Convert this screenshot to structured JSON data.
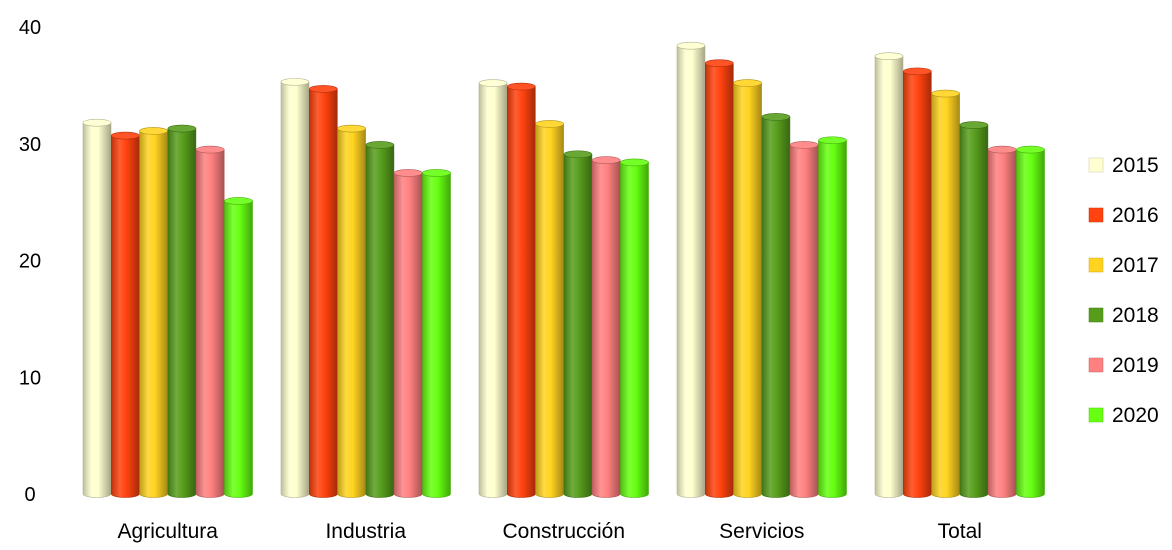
{
  "chart_data": {
    "type": "bar",
    "title": "",
    "xlabel": "",
    "ylabel": "",
    "ylim": [
      0,
      40
    ],
    "yticks": [
      0,
      10,
      20,
      30,
      40
    ],
    "grid": false,
    "legend_position": "right",
    "style": "3d-cylinder",
    "categories": [
      "Agricultura",
      "Industria",
      "Construcción",
      "Servicios",
      "Total"
    ],
    "series": [
      {
        "name": "2015",
        "color": "#FFFFD0",
        "values": [
          31.8,
          35.3,
          35.2,
          38.4,
          37.5
        ]
      },
      {
        "name": "2016",
        "color": "#FF420E",
        "values": [
          30.7,
          34.7,
          34.9,
          36.9,
          36.2
        ]
      },
      {
        "name": "2017",
        "color": "#FFD320",
        "values": [
          31.1,
          31.3,
          31.7,
          35.2,
          34.3
        ]
      },
      {
        "name": "2018",
        "color": "#579D1C",
        "values": [
          31.3,
          29.9,
          29.1,
          32.3,
          31.6
        ]
      },
      {
        "name": "2019",
        "color": "#FF8080",
        "values": [
          29.5,
          27.5,
          28.6,
          29.9,
          29.5
        ]
      },
      {
        "name": "2020",
        "color": "#66FF11",
        "values": [
          25.1,
          27.5,
          28.4,
          30.3,
          29.5
        ]
      }
    ]
  }
}
